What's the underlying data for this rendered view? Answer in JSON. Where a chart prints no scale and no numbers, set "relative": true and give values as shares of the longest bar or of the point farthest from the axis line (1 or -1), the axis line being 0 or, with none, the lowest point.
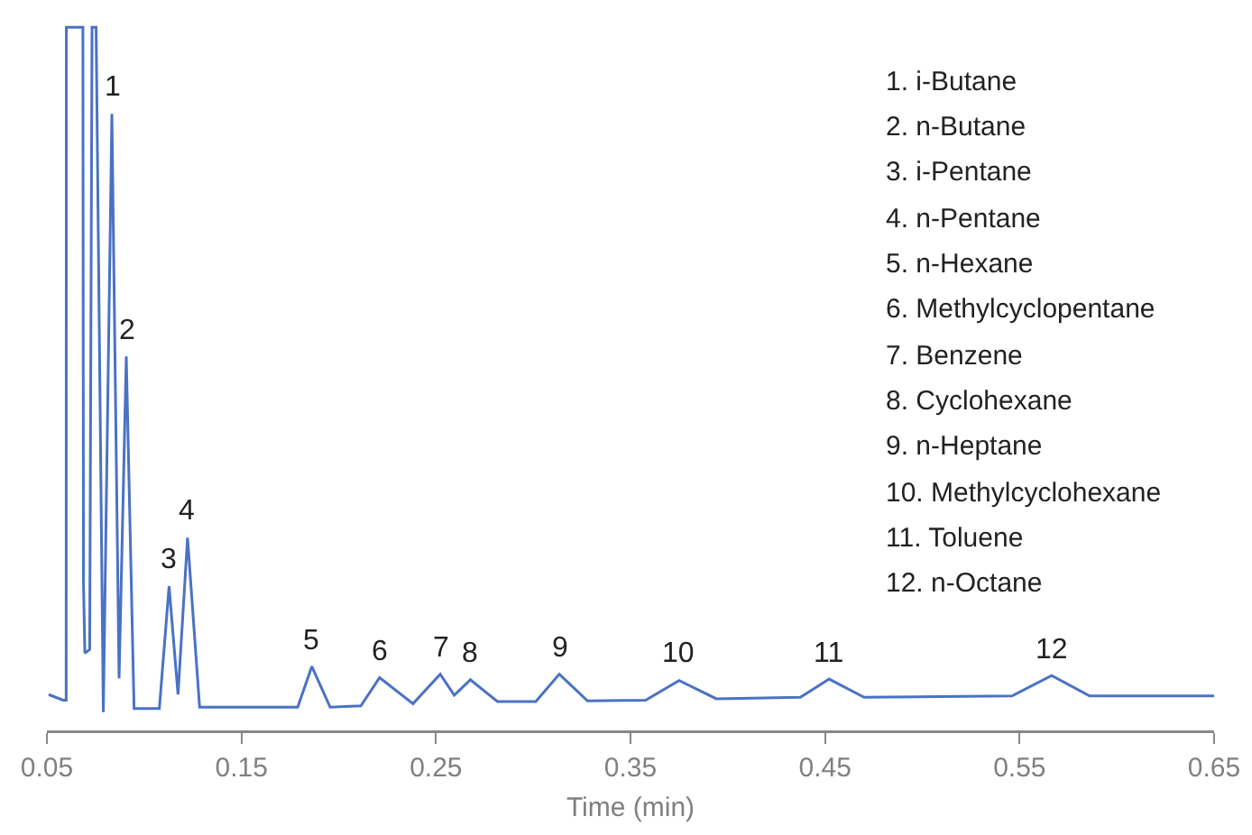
{
  "chart_data": {
    "type": "line",
    "relative": true,
    "xlabel": "Time (min)",
    "xlim": [
      0.05,
      0.65
    ],
    "xticks": [
      0.05,
      0.15,
      0.25,
      0.35,
      0.45,
      0.55,
      0.65
    ],
    "grid": false,
    "marker": "none",
    "line_style": "solid",
    "series": [
      {
        "color": "#4a72c4",
        "x": [
          0.0509,
          0.0583,
          0.0599,
          0.06,
          0.0685,
          0.0688,
          0.0695,
          0.072,
          0.0732,
          0.0753,
          0.079,
          0.0834,
          0.0871,
          0.0908,
          0.0948,
          0.1078,
          0.1128,
          0.1174,
          0.1223,
          0.1285,
          0.1557,
          0.1789,
          0.1862,
          0.1956,
          0.2114,
          0.221,
          0.2382,
          0.2522,
          0.2594,
          0.2677,
          0.2816,
          0.3013,
          0.3134,
          0.3279,
          0.3578,
          0.375,
          0.3941,
          0.4373,
          0.4521,
          0.4701,
          0.5461,
          0.5665,
          0.586,
          0.65
        ],
        "values": [
          0.051,
          0.043,
          0.043,
          1,
          1,
          0.21,
          0.11,
          0.115,
          1,
          1,
          0.026,
          0.877,
          0.074,
          0.532,
          0.031,
          0.031,
          0.205,
          0.051,
          0.274,
          0.033,
          0.033,
          0.033,
          0.091,
          0.033,
          0.035,
          0.075,
          0.038,
          0.08,
          0.05,
          0.072,
          0.041,
          0.041,
          0.08,
          0.042,
          0.043,
          0.071,
          0.045,
          0.047,
          0.073,
          0.047,
          0.049,
          0.078,
          0.049,
          0.049
        ]
      }
    ],
    "annotations": [
      {
        "text": "1",
        "x": 0.0834,
        "y": 0.877
      },
      {
        "text": "2",
        "x": 0.0908,
        "y": 0.532
      },
      {
        "text": "3",
        "x": 0.1128,
        "y": 0.205
      },
      {
        "text": "4",
        "x": 0.1223,
        "y": 0.274
      },
      {
        "text": "5",
        "x": 0.1862,
        "y": 0.091
      },
      {
        "text": "6",
        "x": 0.221,
        "y": 0.075
      },
      {
        "text": "7",
        "x": 0.2522,
        "y": 0.08
      },
      {
        "text": "8",
        "x": 0.2677,
        "y": 0.072
      },
      {
        "text": "9",
        "x": 0.3134,
        "y": 0.08
      },
      {
        "text": "10",
        "x": 0.375,
        "y": 0.071
      },
      {
        "text": "11",
        "x": 0.4521,
        "y": 0.073
      },
      {
        "text": "12",
        "x": 0.5665,
        "y": 0.078
      },
      "1. i-Butane",
      "2. n-Butane",
      "3. i-Pentane",
      "4. n-Pentane",
      "5. n-Hexane",
      "6. Methylcyclopentane",
      "7. Benzene",
      "8. Cyclohexane",
      "9. n-Heptane",
      "10. Methylcyclohexane",
      "11. Toluene",
      "12. n-Octane"
    ]
  }
}
